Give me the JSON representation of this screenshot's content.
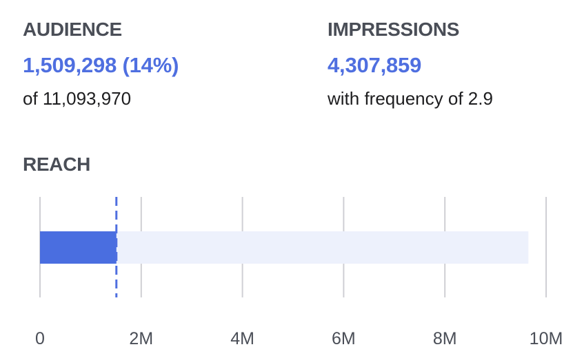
{
  "audience": {
    "label": "AUDIENCE",
    "value": "1,509,298 (14%)",
    "subtext": "of 11,093,970"
  },
  "impressions": {
    "label": "IMPRESSIONS",
    "value": "4,307,859",
    "subtext": "with frequency of 2.9"
  },
  "reach": {
    "label": "REACH"
  },
  "colors": {
    "accent": "#4f6fe0",
    "bar_fill": "#4a6ee0",
    "bar_track": "#edf1fc",
    "gridline": "#cfcfd4",
    "label": "#4a4e57"
  },
  "chart_data": {
    "type": "bar",
    "orientation": "horizontal",
    "title": "REACH",
    "xlim": [
      0,
      10000000
    ],
    "tick_values": [
      0,
      2000000,
      4000000,
      6000000,
      8000000,
      10000000
    ],
    "tick_labels": [
      "0",
      "2M",
      "4M",
      "6M",
      "8M",
      "10M"
    ],
    "grid": true,
    "bar_value": 1509298,
    "background_range_max": 9650000,
    "marker_value": 1509298,
    "marker_style": "dashed"
  }
}
